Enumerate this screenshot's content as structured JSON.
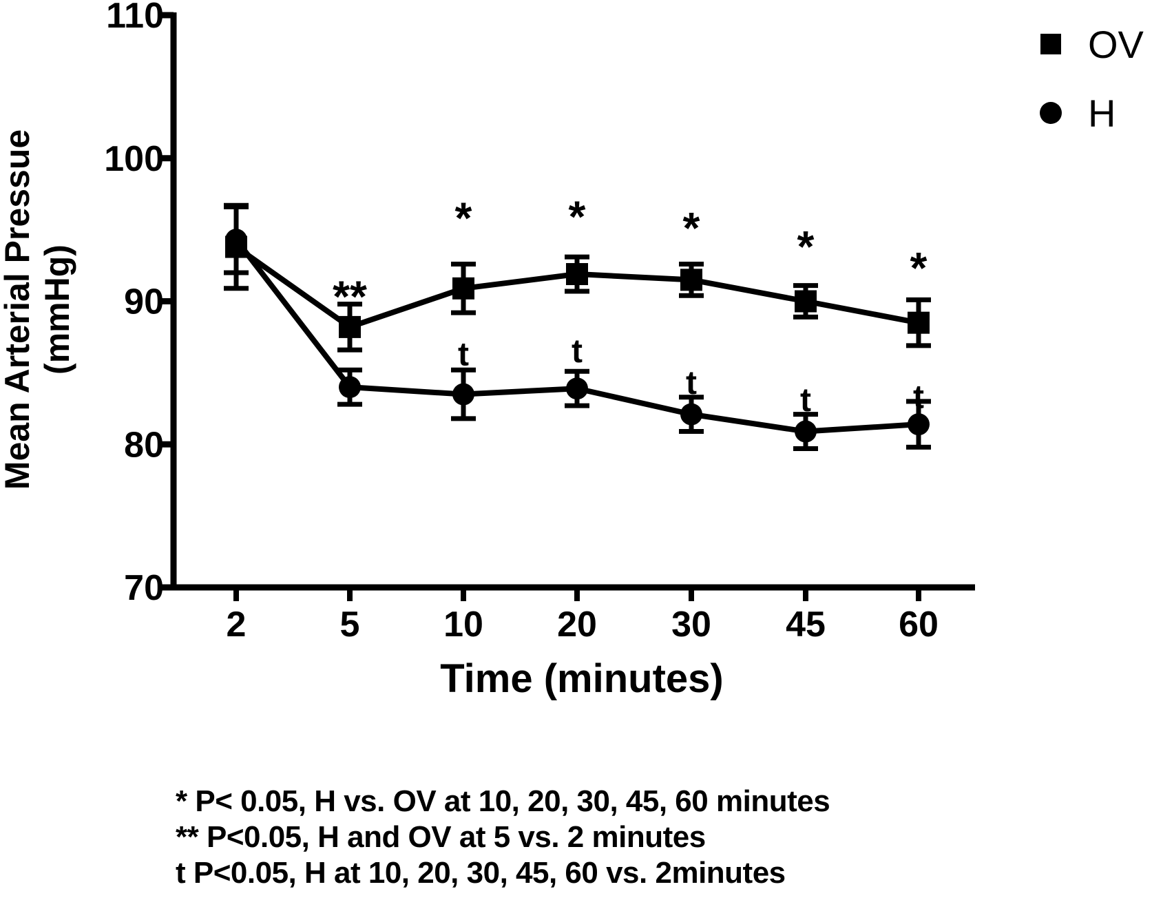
{
  "chart_data": {
    "type": "line",
    "x_categories": [
      "2",
      "5",
      "10",
      "20",
      "30",
      "45",
      "60"
    ],
    "xlabel": "Time (minutes)",
    "ylabel_lines": [
      "Mean Arterial Pressue",
      "(mmHg)"
    ],
    "ylim": [
      70,
      110
    ],
    "yticks": [
      70,
      80,
      90,
      100,
      110
    ],
    "legend_position": "top-right",
    "series": [
      {
        "name": "OV",
        "marker": "square",
        "values": [
          93.8,
          88.2,
          90.9,
          91.9,
          91.5,
          90.0,
          88.5
        ],
        "errors": [
          2.9,
          1.6,
          1.7,
          1.2,
          1.1,
          1.1,
          1.6
        ]
      },
      {
        "name": "H",
        "marker": "circle",
        "values": [
          94.3,
          84.0,
          83.5,
          83.9,
          82.1,
          80.9,
          81.4
        ],
        "errors": [
          2.3,
          1.2,
          1.7,
          1.2,
          1.2,
          1.2,
          1.6
        ]
      }
    ],
    "annotations": [
      {
        "text": "**",
        "category": "5",
        "y": 91.0
      },
      {
        "text": "*",
        "category": "10",
        "y": 96.5
      },
      {
        "text": "*",
        "category": "20",
        "y": 96.6
      },
      {
        "text": "*",
        "category": "30",
        "y": 95.8
      },
      {
        "text": "*",
        "category": "45",
        "y": 94.5
      },
      {
        "text": "*",
        "category": "60",
        "y": 93.0
      },
      {
        "text": "t",
        "category": "10",
        "y": 86.3
      },
      {
        "text": "t",
        "category": "20",
        "y": 86.5
      },
      {
        "text": "t",
        "category": "30",
        "y": 84.3
      },
      {
        "text": "t",
        "category": "45",
        "y": 83.1
      },
      {
        "text": "t",
        "category": "60",
        "y": 83.3
      }
    ],
    "grid": false
  },
  "footnotes": [
    "* P< 0.05, H vs. OV at 10, 20, 30, 45, 60 minutes",
    "** P<0.05, H and OV at 5 vs. 2 minutes",
    "t P<0.05, H at 10, 20, 30, 45, 60 vs. 2minutes"
  ],
  "colors": {
    "ink": "#000000",
    "background": "#ffffff"
  }
}
